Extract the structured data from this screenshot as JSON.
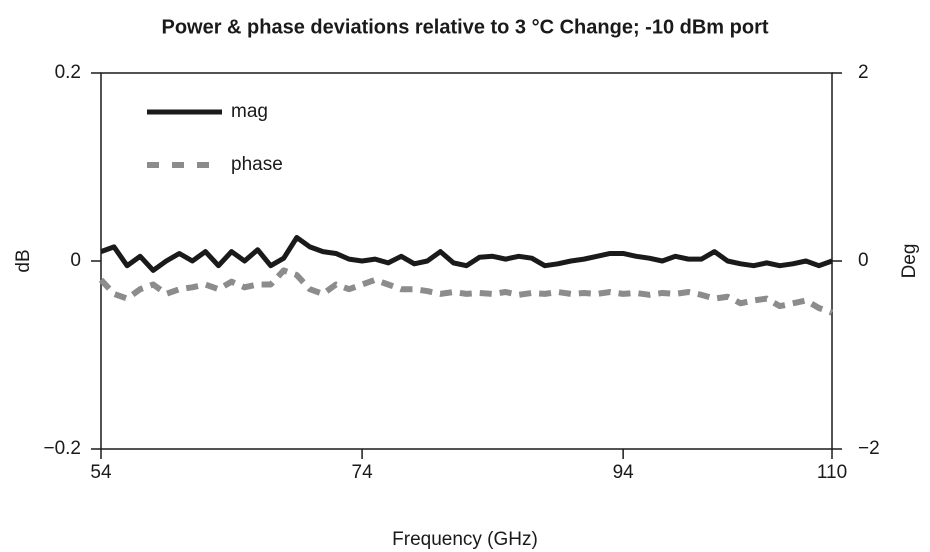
{
  "chart_data": {
    "type": "line",
    "title": "Power & phase deviations relative to 3 °C Change; -10 dBm port",
    "xlabel": "Frequency (GHz)",
    "ylabel": "dB",
    "y2label": "Deg",
    "x": [
      54,
      55,
      56,
      57,
      58,
      59,
      60,
      61,
      62,
      63,
      64,
      65,
      66,
      67,
      68,
      69,
      70,
      71,
      72,
      73,
      74,
      75,
      76,
      77,
      78,
      79,
      80,
      81,
      82,
      83,
      84,
      85,
      86,
      87,
      88,
      89,
      90,
      91,
      92,
      93,
      94,
      95,
      96,
      97,
      98,
      99,
      100,
      101,
      102,
      103,
      104,
      105,
      106,
      107,
      108,
      109,
      110
    ],
    "series": [
      {
        "name": "mag",
        "color": "#1a1a1a",
        "dash": false,
        "values": [
          0.01,
          0.015,
          -0.005,
          0.005,
          -0.01,
          0.0,
          0.008,
          0.0,
          0.01,
          -0.005,
          0.01,
          0.0,
          0.012,
          -0.005,
          0.003,
          0.025,
          0.015,
          0.01,
          0.008,
          0.002,
          0.0,
          0.002,
          -0.002,
          0.005,
          -0.003,
          0.0,
          0.01,
          -0.002,
          -0.005,
          0.004,
          0.005,
          0.002,
          0.005,
          0.003,
          -0.005,
          -0.003,
          0.0,
          0.002,
          0.005,
          0.008,
          0.008,
          0.005,
          0.003,
          0.0,
          0.005,
          0.002,
          0.002,
          0.01,
          0.0,
          -0.003,
          -0.005,
          -0.002,
          -0.005,
          -0.003,
          0.0,
          -0.005,
          0.0
        ]
      },
      {
        "name": "phase",
        "color": "#8c8c8c",
        "dash": true,
        "axis": "y2",
        "values": [
          -0.2,
          -0.35,
          -0.4,
          -0.3,
          -0.25,
          -0.35,
          -0.3,
          -0.28,
          -0.25,
          -0.3,
          -0.22,
          -0.28,
          -0.25,
          -0.25,
          -0.1,
          -0.15,
          -0.3,
          -0.35,
          -0.25,
          -0.3,
          -0.25,
          -0.2,
          -0.25,
          -0.3,
          -0.3,
          -0.32,
          -0.35,
          -0.33,
          -0.35,
          -0.34,
          -0.35,
          -0.33,
          -0.36,
          -0.34,
          -0.35,
          -0.33,
          -0.35,
          -0.34,
          -0.35,
          -0.33,
          -0.35,
          -0.34,
          -0.36,
          -0.34,
          -0.35,
          -0.33,
          -0.36,
          -0.4,
          -0.38,
          -0.45,
          -0.42,
          -0.4,
          -0.48,
          -0.45,
          -0.42,
          -0.5,
          -0.55
        ]
      }
    ],
    "xlim": [
      54,
      110
    ],
    "xticks": [
      54,
      74,
      94,
      110
    ],
    "ylim": [
      -0.2,
      0.2
    ],
    "yticks": [
      {
        "value": -0.2,
        "label": "−0.2"
      },
      0,
      0.2
    ],
    "y2lim": [
      -2,
      2
    ],
    "y2ticks": [
      {
        "value": -2,
        "label": "−2"
      },
      0,
      2
    ],
    "legend": "upper left",
    "grid": false
  }
}
